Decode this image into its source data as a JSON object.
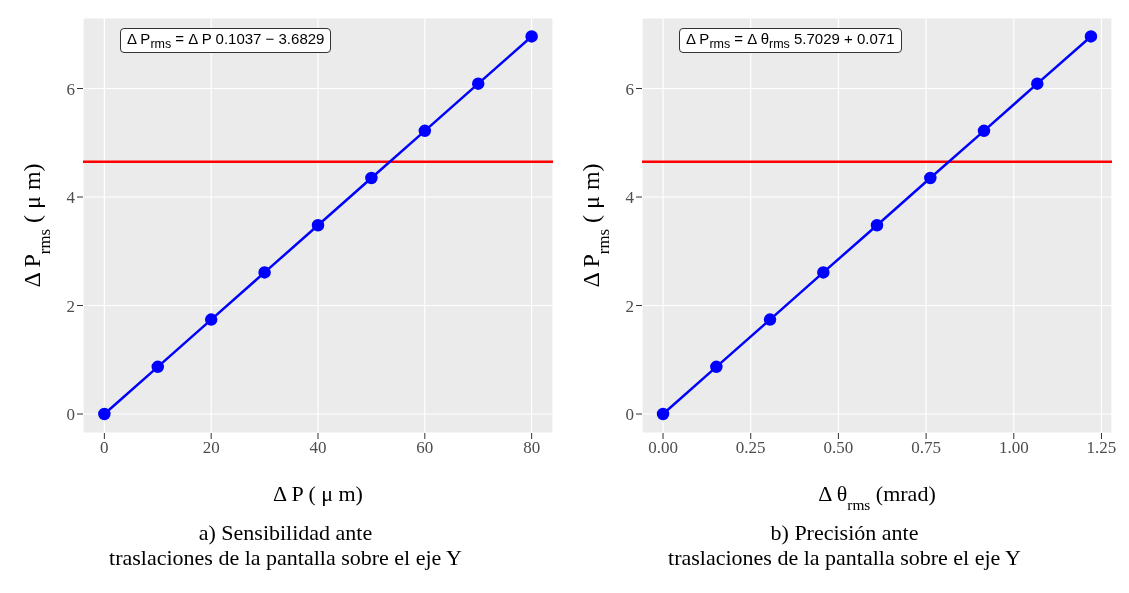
{
  "chart_data": [
    {
      "type": "line",
      "xlabel": "Δ P ( μ m)",
      "ylabel": "Δ P$_{rms}$ ( μ m)",
      "annotations": [
        "Δ P$_{rms}$ =  Δ P 0.1037 − 3.6829",
        "a) Sensibilidad ante\ntraslaciones de la pantalla sobre el eje Y"
      ],
      "x": [
        0,
        10,
        20,
        30,
        40,
        50,
        60,
        70,
        80
      ],
      "series": [
        {
          "color": "#0000ff",
          "values": [
            0,
            0.87,
            1.74,
            2.61,
            3.48,
            4.35,
            5.22,
            6.09,
            6.96
          ]
        }
      ],
      "xlim": [
        -4,
        84
      ],
      "xticks": [
        0,
        20,
        40,
        60,
        80
      ],
      "ylim": [
        -0.35,
        7.3
      ],
      "yticks": [
        0,
        2,
        4,
        6
      ],
      "ref_lines": [
        {
          "axis": "y",
          "value": 4.65,
          "color": "#ff0000"
        }
      ],
      "grid": true,
      "marker": "circle",
      "line_style": "solid"
    },
    {
      "type": "line",
      "xlabel": "Δ θ$_{rms}$ (mrad)",
      "ylabel": "Δ P$_{rms}$ ( μ m)",
      "annotations": [
        "Δ P$_{rms}$ =  Δ θ$_{rms}$ 5.7029 + 0.071",
        "b) Precisión ante\ntraslaciones de la pantalla sobre el eje Y"
      ],
      "x": [
        0,
        0.152,
        0.305,
        0.457,
        0.61,
        0.762,
        0.915,
        1.067,
        1.22
      ],
      "series": [
        {
          "color": "#0000ff",
          "values": [
            0,
            0.87,
            1.74,
            2.61,
            3.48,
            4.35,
            5.22,
            6.09,
            6.96
          ]
        }
      ],
      "xlim": [
        -0.06,
        1.28
      ],
      "xticks": [
        {
          "value": 0,
          "label": "0.00"
        },
        {
          "value": 0.25,
          "label": "0.25"
        },
        {
          "value": 0.5,
          "label": "0.50"
        },
        {
          "value": 0.75,
          "label": "0.75"
        },
        {
          "value": 1,
          "label": "1.00"
        },
        {
          "value": 1.25,
          "label": "1.25"
        }
      ],
      "ylim": [
        -0.35,
        7.3
      ],
      "yticks": [
        0,
        2,
        4,
        6
      ],
      "ref_lines": [
        {
          "axis": "y",
          "value": 4.65,
          "color": "#ff0000"
        }
      ],
      "grid": true,
      "marker": "circle",
      "line_style": "solid"
    }
  ]
}
